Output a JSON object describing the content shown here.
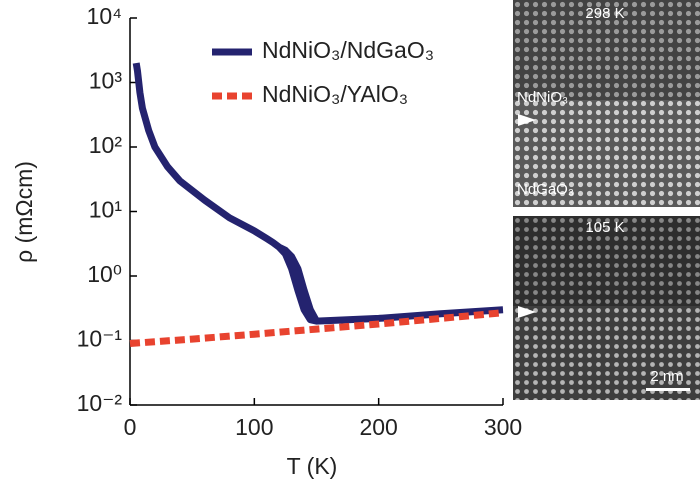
{
  "chart_data": {
    "type": "line",
    "y_label": "ρ (mΩcm)",
    "x_label": "T (K)",
    "log_y": true,
    "legend": "upper right",
    "xlim": [
      0,
      300
    ],
    "xticks": [
      0,
      100,
      200,
      300
    ],
    "ylim": [
      0.01,
      10000
    ],
    "yticks": [
      {
        "value": 0.01,
        "label": "10⁻²"
      },
      {
        "value": 0.1,
        "label": "10⁻¹"
      },
      {
        "value": 1,
        "label": "10⁰"
      },
      {
        "value": 10,
        "label": "10¹"
      },
      {
        "value": 100,
        "label": "10²"
      },
      {
        "value": 1000,
        "label": "10³"
      },
      {
        "value": 10000,
        "label": "10⁴"
      }
    ],
    "series": [
      {
        "name": "NdNiO₃/NdGaO₃",
        "color": "#24236f",
        "dashed": false,
        "x": [
          300,
          250,
          200,
          150,
          145,
          140,
          135,
          130,
          125,
          120,
          115,
          110,
          100,
          80,
          60,
          40,
          30,
          20,
          15,
          10,
          8,
          6,
          5,
          5,
          null,
          120,
          125,
          130,
          135,
          140,
          145,
          150
        ],
        "values": [
          0.3,
          0.26,
          0.22,
          0.2,
          0.21,
          0.3,
          0.6,
          1.3,
          2.2,
          2.8,
          3.3,
          3.8,
          5,
          8,
          15,
          30,
          50,
          100,
          180,
          400,
          700,
          1500,
          2000,
          2000,
          null,
          2.8,
          2.5,
          2,
          1.3,
          0.6,
          0.3,
          0.2
        ]
      },
      {
        "name": "NdNiO₃/YAlO₃",
        "color": "#e8432f",
        "dashed": true,
        "x": [
          0,
          50,
          100,
          150,
          200,
          250,
          300
        ],
        "values": [
          0.09,
          0.105,
          0.125,
          0.15,
          0.18,
          0.22,
          0.27
        ]
      }
    ]
  },
  "images": [
    {
      "label": "298 K",
      "annotations": [
        "NdNiO₃",
        "NdGaO₃"
      ]
    },
    {
      "label": "105 K",
      "scale_bar": "2 nm"
    }
  ]
}
